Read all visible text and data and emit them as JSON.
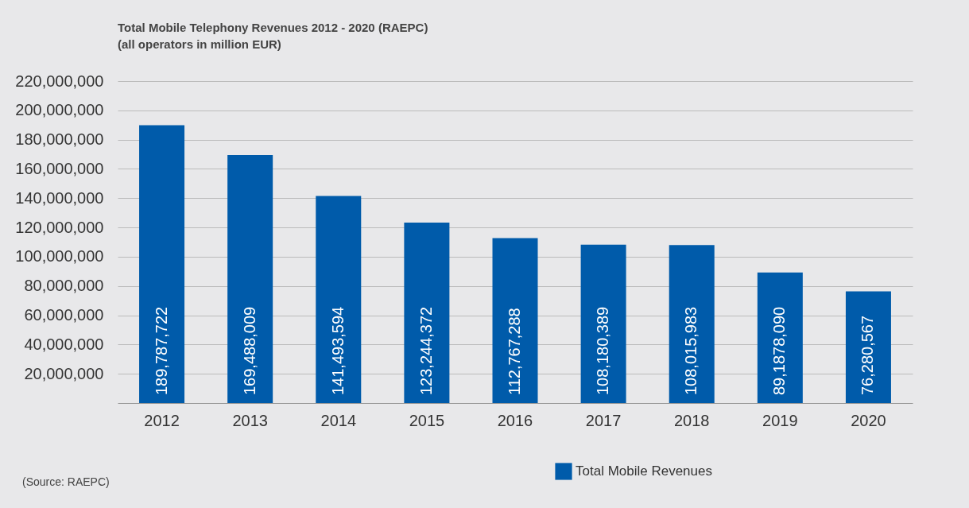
{
  "chart_data": {
    "type": "bar",
    "title": "Total Mobile Telephony Revenues 2012 - 2020 (RAEPC)",
    "subtitle": "(all operators in million EUR)",
    "categories": [
      "2012",
      "2013",
      "2014",
      "2015",
      "2016",
      "2017",
      "2018",
      "2019",
      "2020"
    ],
    "series": [
      {
        "name": "Total Mobile Revenues",
        "color": "#005baa",
        "values": [
          189787722,
          169488009,
          141493594,
          123244372,
          112767288,
          108180389,
          108015983,
          89187809,
          76280567
        ]
      }
    ],
    "value_labels": [
      "189,787,722",
      "169,488,009",
      "141,493,594",
      "123,244,372",
      "112,767,288",
      "108,180,389",
      "108,015,983",
      "89,1878,090",
      "76,280,567"
    ],
    "ylim": [
      0,
      220000000
    ],
    "yticks": [
      {
        "value": 20000000,
        "label": "20,000,000"
      },
      {
        "value": 40000000,
        "label": "40,000,000"
      },
      {
        "value": 60000000,
        "label": "60,000,000"
      },
      {
        "value": 80000000,
        "label": "80,000,000"
      },
      {
        "value": 100000000,
        "label": "100,000,000"
      },
      {
        "value": 120000000,
        "label": "120,000,000"
      },
      {
        "value": 140000000,
        "label": "140,000,000"
      },
      {
        "value": 160000000,
        "label": "160,000,000"
      },
      {
        "value": 180000000,
        "label": "180,000,000"
      },
      {
        "value": 200000000,
        "label": "200,000,000"
      },
      {
        "value": 220000000,
        "label": "220,000,000"
      }
    ],
    "grid": "y",
    "legend": "bottom right",
    "annotations": [
      "(Source: RAEPC)"
    ]
  }
}
